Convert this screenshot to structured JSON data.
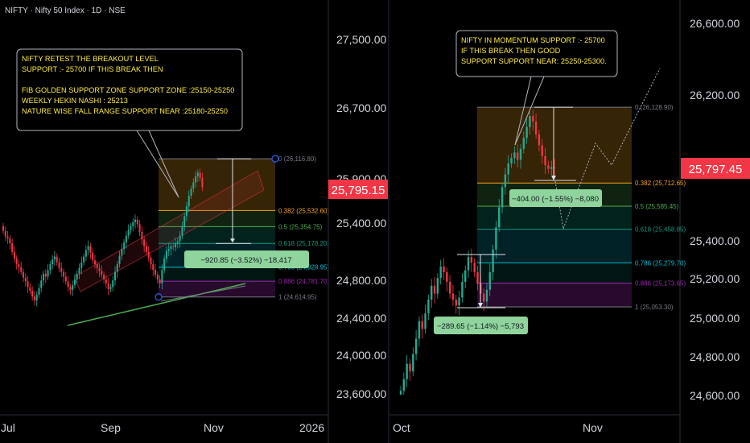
{
  "header": {
    "symbol_title": "NIFTY · Nifty 50 Index · 1D · NSE"
  },
  "colors": {
    "up": "#22ab94",
    "down": "#f23645",
    "price_badge": "#f23645",
    "fib_0": "#787b86",
    "fib_0382": "#f7a21b",
    "fib_05": "#4caf50",
    "fib_0618": "#089981",
    "fib_0786": "#00bcd4",
    "fib_0886": "#9c27b0",
    "fib_1": "#787b86",
    "note_text": "#ffeb3b",
    "measure_bg": "#8fd49c"
  },
  "left_panel": {
    "note": {
      "lines": [
        "NIFTY RETEST THE BREAKOUT LEVEL",
        "SUPPORT :- 25700 IF THIS BREAK THEN",
        "",
        "FIB GOLDEN SUPPORT ZONE SUPPORT ZONE :25150-25250",
        "WEEKLY HEKIN NASHI : 25213",
        "NATURE WISE FALL RANGE SUPPORT NEAR :25180-25250"
      ]
    },
    "fib_labels": [
      {
        "label": "0 (26,116.80)",
        "price": 26116.8,
        "color_key": "fib_0"
      },
      {
        "label": "0.382 (25,532.60)",
        "price": 25532.6,
        "color_key": "fib_0382"
      },
      {
        "label": "0.5 (25,354.75)",
        "price": 25354.75,
        "color_key": "fib_05"
      },
      {
        "label": "0.618 (25,178.20)",
        "price": 25178.2,
        "color_key": "fib_0618"
      },
      {
        "label": "0.786 (24,928.95)",
        "price": 24928.95,
        "color_key": "fib_0786"
      },
      {
        "label": "0.886 (24,781.70)",
        "price": 24781.7,
        "color_key": "fib_0886"
      },
      {
        "label": "1 (24,614.95)",
        "price": 24614.95,
        "color_key": "fib_1"
      }
    ],
    "measure_label": "−920.85 (−3.52%) −18,417",
    "y_axis": {
      "ticks": [
        "27,500.00",
        "26,700.00",
        "25,900.00",
        "25,400.00",
        "24,800.00",
        "24,400.00",
        "24,000.00",
        "23,600.00"
      ],
      "price_badge": "25,795.15"
    },
    "x_axis": {
      "ticks": [
        "Jul",
        "Sep",
        "Nov",
        "2026"
      ]
    }
  },
  "right_panel": {
    "note": {
      "lines": [
        "NIFTY IN MOMENTUM SUPPORT :- 25700",
        "IF THIS BREAK THEN GOOD",
        "SUPPORT SUPPORT NEAR: 25250-25300."
      ]
    },
    "fib_labels": [
      {
        "label": "0 (26,128.90)",
        "price": 26128.9,
        "color_key": "fib_0"
      },
      {
        "label": "0.382 (25,712.65)",
        "price": 25712.65,
        "color_key": "fib_0382"
      },
      {
        "label": "0.5 (25,585.45)",
        "price": 25585.45,
        "color_key": "fib_05"
      },
      {
        "label": "0.618 (25,458.85)",
        "price": 25458.85,
        "color_key": "fib_0618"
      },
      {
        "label": "0.786 (25,279.70)",
        "price": 25279.7,
        "color_key": "fib_0786"
      },
      {
        "label": "0.886 (25,173.65)",
        "price": 25173.65,
        "color_key": "fib_0886"
      },
      {
        "label": "1 (25,053.30)",
        "price": 25053.3,
        "color_key": "fib_1"
      }
    ],
    "measure_label_top": "−404.00 (−1.55%) −8,080",
    "measure_label_bottom": "−289.65 (−1.14%) −5,793",
    "y_axis": {
      "ticks": [
        "26,600.00",
        "26,200.00",
        "25,400.00",
        "25,200.00",
        "25,000.00",
        "24,800.00",
        "24,600.00"
      ],
      "price_badge": "25,797.45"
    },
    "x_axis": {
      "ticks": [
        "Oct",
        "Nov"
      ]
    }
  },
  "chart_data": [
    {
      "type": "candlestick",
      "panel": "left",
      "x_ticks": [
        "Jul",
        "Sep",
        "Nov",
        "2026"
      ],
      "y_ticks": [
        27500,
        26700,
        25900,
        25400,
        24800,
        24400,
        24000,
        23600
      ],
      "last_price": 25795.15,
      "fib_levels": [
        {
          "ratio": 0,
          "price": 26116.8
        },
        {
          "ratio": 0.382,
          "price": 25532.6
        },
        {
          "ratio": 0.5,
          "price": 25354.75
        },
        {
          "ratio": 0.618,
          "price": 25178.2
        },
        {
          "ratio": 0.786,
          "price": 24928.95
        },
        {
          "ratio": 0.886,
          "price": 24781.7
        },
        {
          "ratio": 1,
          "price": 24614.95
        }
      ],
      "measure": {
        "change": -920.85,
        "percent": -3.52,
        "ticks": -18417
      }
    },
    {
      "type": "candlestick",
      "panel": "right",
      "x_ticks": [
        "Oct",
        "Nov"
      ],
      "y_ticks": [
        26600,
        26200,
        25400,
        25200,
        25000,
        24800,
        24600
      ],
      "last_price": 25797.45,
      "fib_levels": [
        {
          "ratio": 0,
          "price": 26128.9
        },
        {
          "ratio": 0.382,
          "price": 25712.65
        },
        {
          "ratio": 0.5,
          "price": 25585.45
        },
        {
          "ratio": 0.618,
          "price": 25458.85
        },
        {
          "ratio": 0.786,
          "price": 25279.7
        },
        {
          "ratio": 0.886,
          "price": 25173.65
        },
        {
          "ratio": 1,
          "price": 25053.3
        }
      ],
      "measures": [
        {
          "change": -404.0,
          "percent": -1.55,
          "ticks": -8080
        },
        {
          "change": -289.65,
          "percent": -1.14,
          "ticks": -5793
        }
      ]
    }
  ]
}
